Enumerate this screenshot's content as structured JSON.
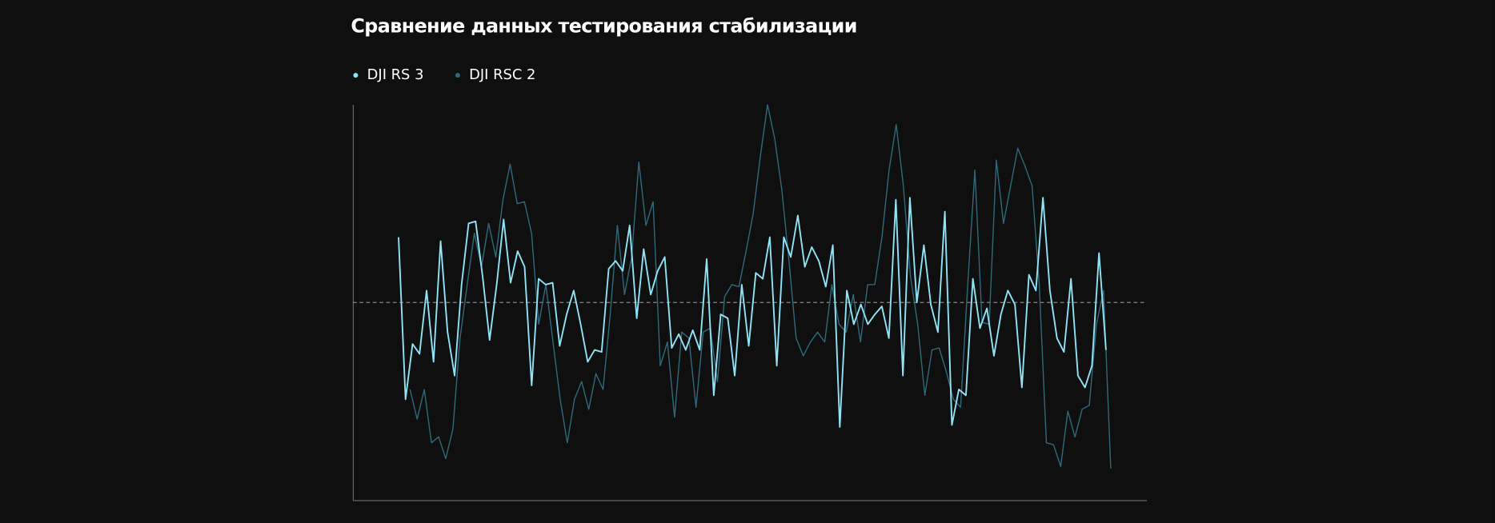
{
  "chart_data": {
    "type": "line",
    "title": "Сравнение данных тестирования стабилизации",
    "ylim": [
      -1,
      1
    ],
    "reference_line": 0,
    "series": [
      {
        "name": "DJI RS 3",
        "color": "#8fe3f5",
        "values": [
          0.33,
          -0.49,
          -0.21,
          -0.26,
          0.06,
          -0.3,
          0.31,
          -0.15,
          -0.37,
          0.09,
          0.4,
          0.41,
          0.13,
          -0.19,
          0.09,
          0.42,
          0.1,
          0.26,
          0.18,
          -0.42,
          0.12,
          0.09,
          0.1,
          -0.22,
          -0.06,
          0.06,
          -0.11,
          -0.3,
          -0.24,
          -0.25,
          0.17,
          0.21,
          0.16,
          0.39,
          -0.08,
          0.27,
          0.04,
          0.16,
          0.23,
          -0.23,
          -0.16,
          -0.24,
          -0.14,
          -0.24,
          0.22,
          -0.47,
          -0.06,
          -0.08,
          -0.37,
          0.09,
          -0.22,
          0.15,
          0.12,
          0.33,
          -0.32,
          0.33,
          0.23,
          0.44,
          0.18,
          0.28,
          0.21,
          0.08,
          0.29,
          -0.63,
          0.06,
          -0.11,
          -0.01,
          -0.11,
          -0.06,
          -0.02,
          -0.18,
          0.52,
          -0.37,
          0.53,
          0,
          0.29,
          -0.01,
          -0.15,
          0.46,
          -0.62,
          -0.44,
          -0.47,
          0.12,
          -0.13,
          -0.03,
          -0.27,
          -0.06,
          0.06,
          -0.01,
          -0.43,
          0.14,
          0.06,
          0.53,
          0.06,
          -0.18,
          -0.25,
          0.12,
          -0.37,
          -0.43,
          -0.32,
          0.25,
          -0.24
        ]
      },
      {
        "name": "DJI RSC 2",
        "color": "#2f6878",
        "values": [
          -0.44,
          -0.59,
          -0.44,
          -0.71,
          -0.68,
          -0.79,
          -0.64,
          -0.18,
          0.09,
          0.35,
          0.18,
          0.4,
          0.23,
          0.52,
          0.7,
          0.5,
          0.51,
          0.35,
          -0.11,
          0.09,
          -0.2,
          -0.49,
          -0.71,
          -0.49,
          -0.4,
          -0.54,
          -0.36,
          -0.44,
          -0.06,
          0.39,
          0.04,
          0.23,
          0.71,
          0.39,
          0.51,
          -0.32,
          -0.2,
          -0.58,
          -0.15,
          -0.18,
          -0.53,
          -0.15,
          -0.13,
          -0.4,
          0.03,
          0.09,
          0.08,
          0.26,
          0.45,
          0.74,
          1.0,
          0.83,
          0.57,
          0.21,
          -0.18,
          -0.27,
          -0.2,
          -0.15,
          -0.2,
          0.09,
          -0.11,
          -0.15,
          0.04,
          -0.2,
          0.09,
          0.09,
          0.33,
          0.67,
          0.9,
          0.59,
          0.13,
          -0.11,
          -0.47,
          -0.24,
          -0.23,
          -0.35,
          -0.49,
          -0.53,
          0.09,
          0.67,
          -0.1,
          -0.11,
          0.72,
          0.4,
          0.59,
          0.78,
          0.69,
          0.59,
          0.09,
          -0.71,
          -0.72,
          -0.83,
          -0.55,
          -0.68,
          -0.54,
          -0.52,
          -0.11,
          0.06,
          -0.84
        ]
      }
    ]
  }
}
